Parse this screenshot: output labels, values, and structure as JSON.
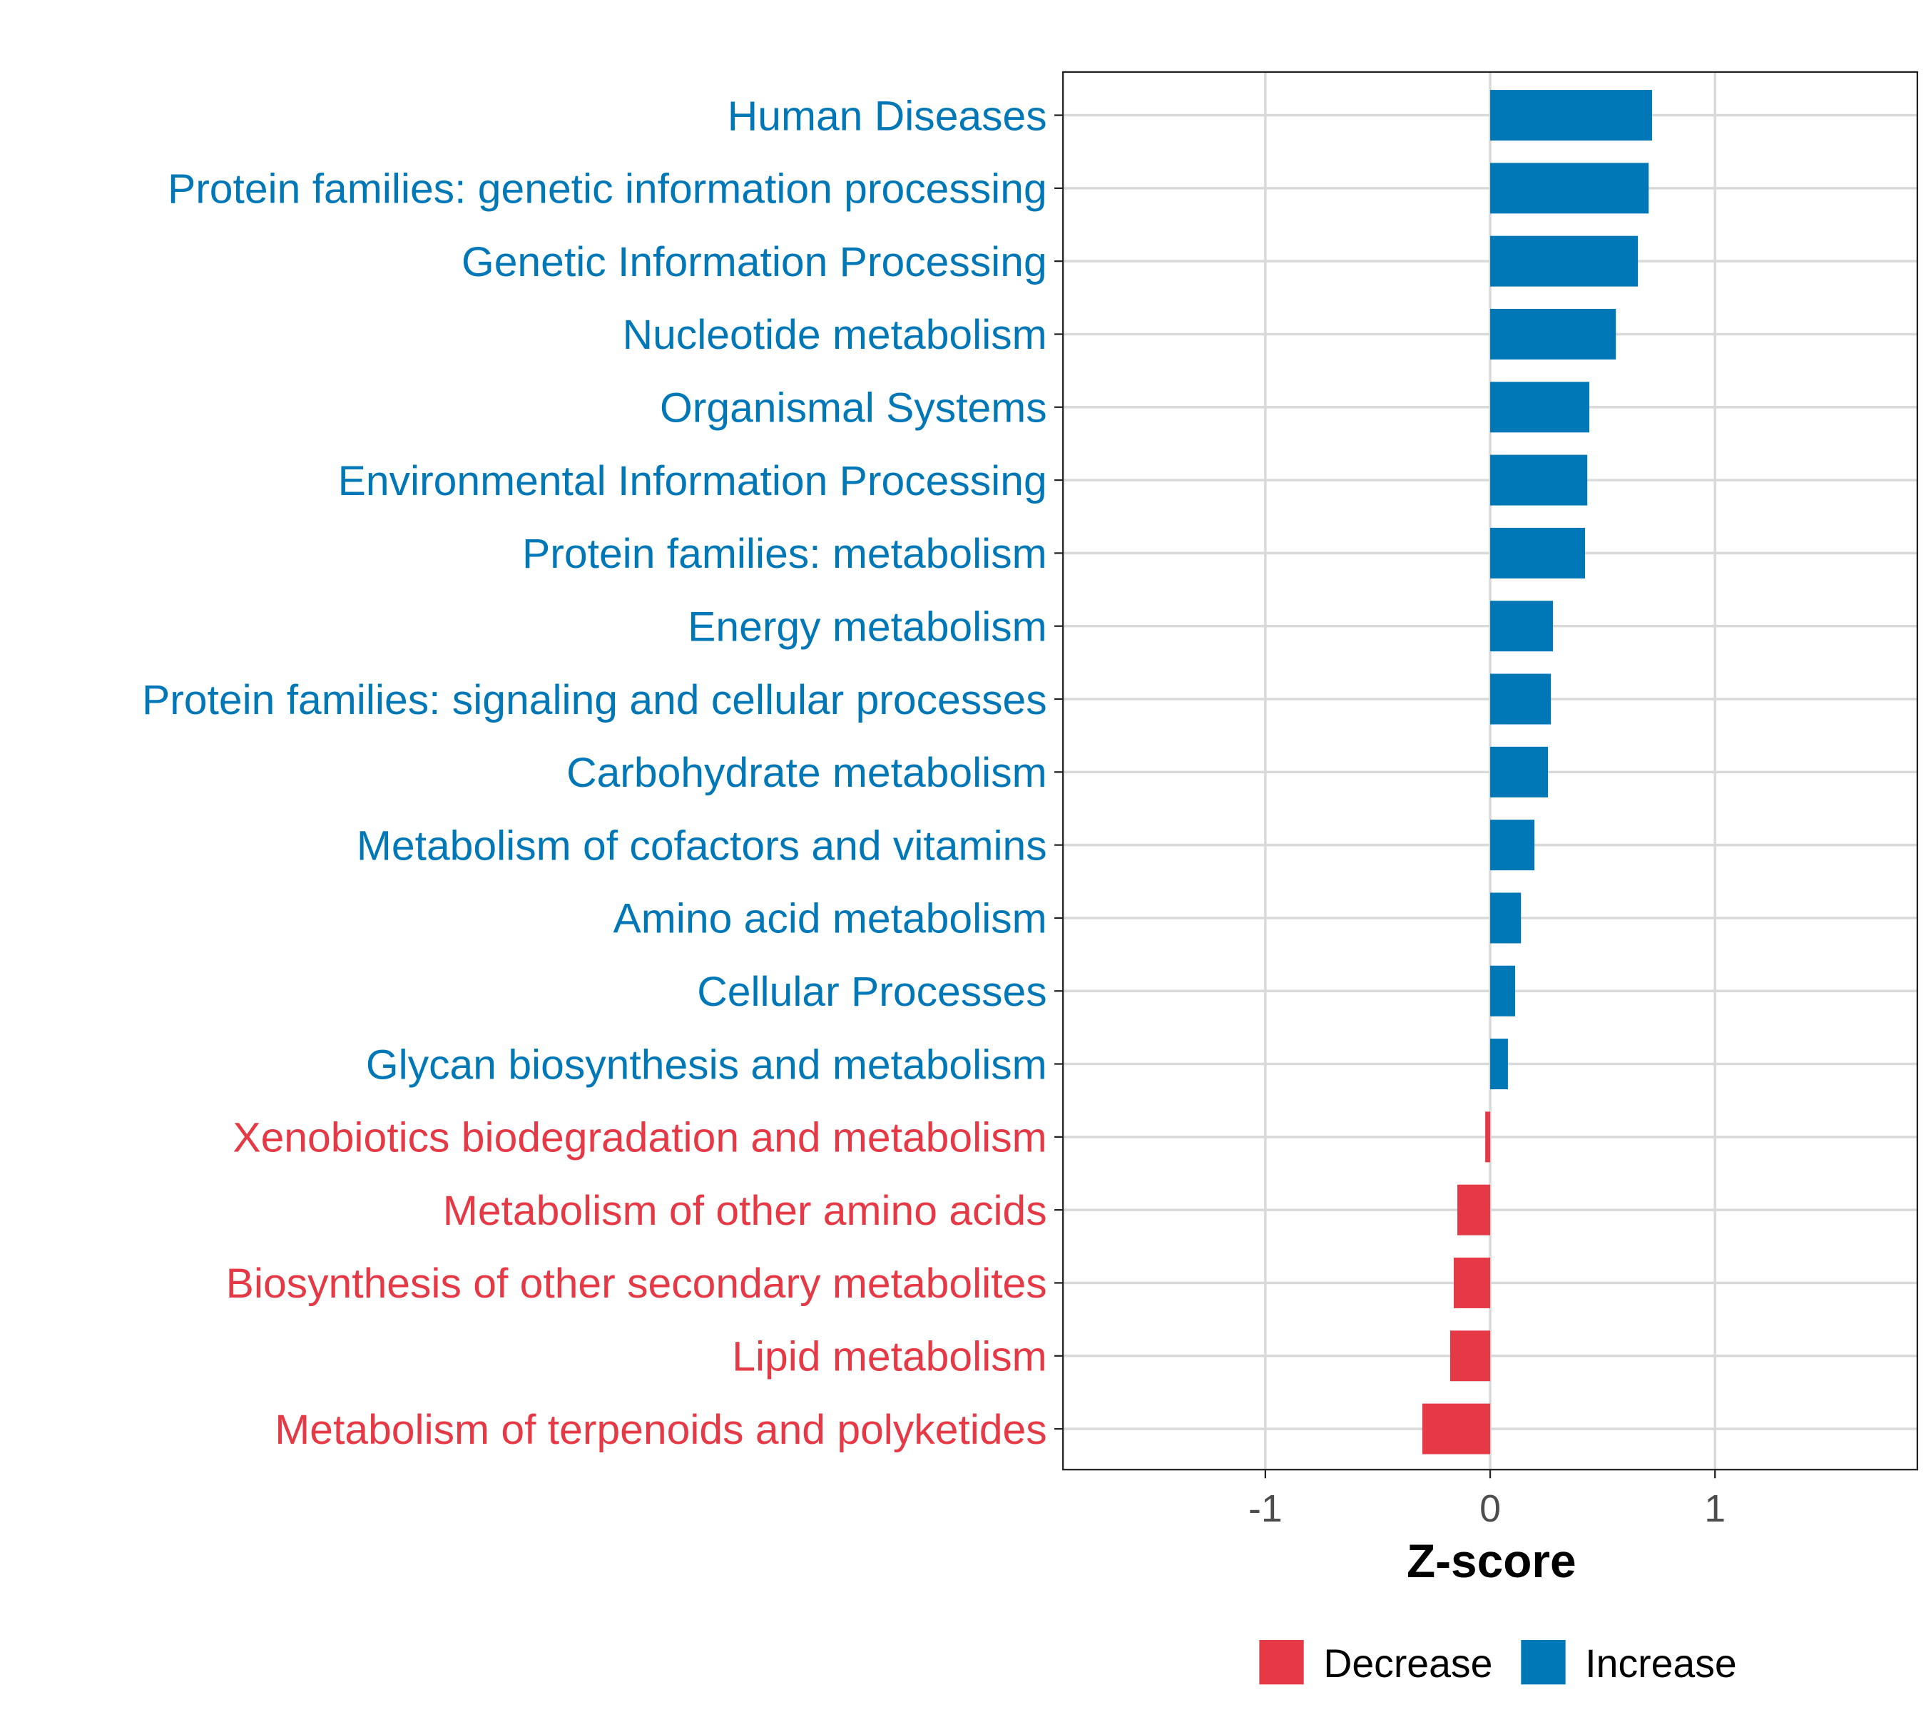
{
  "chart_data": {
    "type": "bar",
    "orientation": "horizontal",
    "title": "",
    "xlabel": "Z-score",
    "ylabel": "",
    "xlim": [
      -1.9,
      1.9
    ],
    "xticks": [
      -1,
      0,
      1
    ],
    "xtick_labels": [
      "-1",
      "0",
      "1"
    ],
    "grid": true,
    "legend_position": "bottom",
    "legend": [
      {
        "label": "Decrease",
        "color": "#E63946"
      },
      {
        "label": "Increase",
        "color": "#0077B6"
      }
    ],
    "categories": [
      "Human Diseases",
      "Protein families: genetic information processing",
      "Genetic Information Processing",
      "Nucleotide metabolism",
      "Organismal Systems",
      "Environmental Information Processing",
      "Protein families: metabolism",
      "Energy metabolism",
      "Protein families: signaling and cellular processes",
      "Carbohydrate metabolism",
      "Metabolism of cofactors and vitamins",
      "Amino acid metabolism",
      "Cellular Processes",
      "Glycan biosynthesis and metabolism",
      "Xenobiotics biodegradation and metabolism",
      "Metabolism of other amino acids",
      "Biosynthesis of other secondary metabolites",
      "Lipid metabolism",
      "Metabolism of terpenoids and polyketides"
    ],
    "values": [
      0.72,
      0.705,
      0.657,
      0.559,
      0.441,
      0.432,
      0.422,
      0.279,
      0.27,
      0.257,
      0.197,
      0.137,
      0.111,
      0.079,
      -0.022,
      -0.146,
      -0.162,
      -0.178,
      -0.302
    ]
  }
}
